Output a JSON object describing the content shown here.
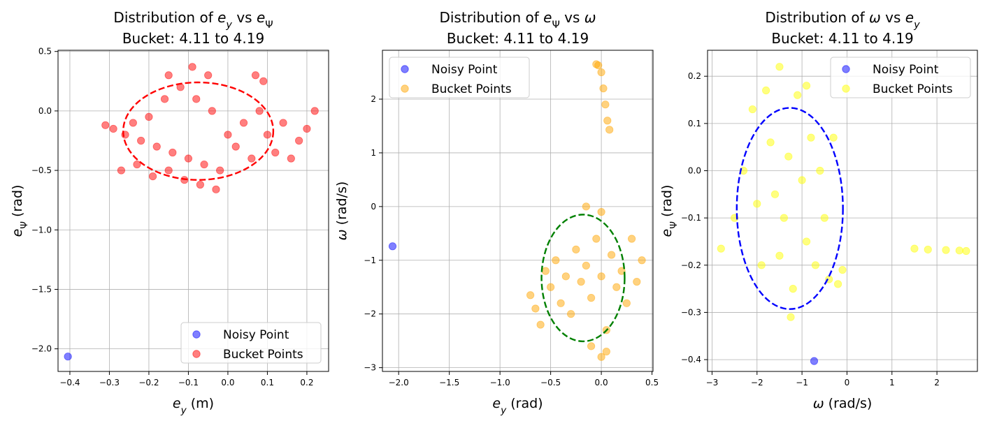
{
  "chart_data": [
    {
      "type": "scatter",
      "title_line1": "Distribution of e_y vs e_Ψ",
      "title_line2": "Bucket: 4.11 to 4.19",
      "xlabel": "e_y (m)",
      "ylabel": "e_Ψ (rad)",
      "xlim": [
        -0.43,
        0.255
      ],
      "ylim": [
        -2.19,
        0.51
      ],
      "xticks": [
        -0.4,
        -0.3,
        -0.2,
        -0.1,
        0.0,
        0.1,
        0.2
      ],
      "xtick_labels": [
        "−0.4",
        "−0.3",
        "−0.2",
        "−0.1",
        "0.0",
        "0.1",
        "0.2"
      ],
      "yticks": [
        -2.0,
        -1.5,
        -1.0,
        -0.5,
        0.0,
        0.5
      ],
      "ytick_labels": [
        "−2.0",
        "−1.5",
        "−1.0",
        "−0.5",
        "0.0",
        "0.5"
      ],
      "grid": true,
      "legend_position": "lower right",
      "series": [
        {
          "name": "Noisy Point",
          "color": "#0000ff",
          "points": [
            [
              -0.405,
              -2.065
            ]
          ]
        },
        {
          "name": "Bucket Points",
          "color": "#ff0000",
          "points": [
            [
              -0.31,
              -0.12
            ],
            [
              -0.29,
              -0.15
            ],
            [
              -0.26,
              -0.2
            ],
            [
              -0.24,
              -0.1
            ],
            [
              -0.22,
              -0.25
            ],
            [
              -0.2,
              -0.05
            ],
            [
              -0.18,
              -0.3
            ],
            [
              -0.16,
              0.1
            ],
            [
              -0.14,
              -0.35
            ],
            [
              -0.12,
              0.2
            ],
            [
              -0.1,
              -0.4
            ],
            [
              -0.08,
              0.1
            ],
            [
              -0.06,
              -0.45
            ],
            [
              -0.04,
              0.0
            ],
            [
              -0.02,
              -0.5
            ],
            [
              0.0,
              -0.2
            ],
            [
              0.02,
              -0.3
            ],
            [
              0.04,
              -0.1
            ],
            [
              0.06,
              -0.4
            ],
            [
              0.08,
              0.0
            ],
            [
              0.1,
              -0.2
            ],
            [
              0.12,
              -0.35
            ],
            [
              0.14,
              -0.1
            ],
            [
              0.16,
              -0.4
            ],
            [
              0.18,
              -0.25
            ],
            [
              0.2,
              -0.15
            ],
            [
              0.22,
              0.0
            ],
            [
              -0.27,
              -0.5
            ],
            [
              -0.23,
              -0.45
            ],
            [
              -0.19,
              -0.55
            ],
            [
              -0.15,
              -0.5
            ],
            [
              -0.11,
              -0.58
            ],
            [
              -0.07,
              -0.62
            ],
            [
              -0.03,
              -0.66
            ],
            [
              -0.09,
              0.37
            ],
            [
              -0.05,
              0.3
            ],
            [
              -0.15,
              0.3
            ],
            [
              0.07,
              0.3
            ],
            [
              0.09,
              0.25
            ]
          ]
        }
      ],
      "ellipse": {
        "color": "#ff0000",
        "cx": -0.075,
        "cy": -0.17,
        "rx": 0.19,
        "ry": 0.41
      }
    },
    {
      "type": "scatter",
      "title_line1": "Distribution of e_Ψ vs ω",
      "title_line2": "Bucket: 4.11 to 4.19",
      "xlabel": "e_y (rad)",
      "ylabel": "ω (rad/s)",
      "xlim": [
        -2.16,
        0.51
      ],
      "ylim": [
        -3.07,
        2.91
      ],
      "xticks": [
        -2.0,
        -1.5,
        -1.0,
        -0.5,
        0.0,
        0.5
      ],
      "xtick_labels": [
        "−2.0",
        "−1.5",
        "−1.0",
        "−0.5",
        "0.0",
        "0.5"
      ],
      "yticks": [
        -3,
        -2,
        -1,
        0,
        1,
        2
      ],
      "ytick_labels": [
        "−3",
        "−2",
        "−1",
        "0",
        "1",
        "2"
      ],
      "grid": true,
      "legend_position": "upper left",
      "series": [
        {
          "name": "Noisy Point",
          "color": "#0000ff",
          "points": [
            [
              -2.06,
              -0.74
            ]
          ]
        },
        {
          "name": "Bucket Points",
          "color": "#ffa500",
          "points": [
            [
              -0.7,
              -1.65
            ],
            [
              -0.65,
              -1.9
            ],
            [
              -0.6,
              -2.2
            ],
            [
              -0.55,
              -1.2
            ],
            [
              -0.5,
              -1.5
            ],
            [
              -0.45,
              -1.0
            ],
            [
              -0.4,
              -1.8
            ],
            [
              -0.35,
              -1.3
            ],
            [
              -0.3,
              -2.0
            ],
            [
              -0.25,
              -0.8
            ],
            [
              -0.2,
              -1.4
            ],
            [
              -0.15,
              -1.1
            ],
            [
              -0.1,
              -1.7
            ],
            [
              -0.05,
              -0.6
            ],
            [
              0.0,
              -1.3
            ],
            [
              0.05,
              -2.3
            ],
            [
              0.1,
              -0.9
            ],
            [
              0.15,
              -1.5
            ],
            [
              0.2,
              -1.2
            ],
            [
              0.25,
              -1.8
            ],
            [
              0.3,
              -0.6
            ],
            [
              0.35,
              -1.4
            ],
            [
              0.4,
              -1.0
            ],
            [
              -0.1,
              -2.6
            ],
            [
              0.0,
              -2.8
            ],
            [
              0.05,
              -2.7
            ],
            [
              -0.15,
              0.0
            ],
            [
              0.0,
              -0.1
            ],
            [
              -0.05,
              2.65
            ],
            [
              0.0,
              2.5
            ],
            [
              0.02,
              2.2
            ],
            [
              0.04,
              1.9
            ],
            [
              0.06,
              1.6
            ],
            [
              0.08,
              1.43
            ],
            [
              -0.03,
              2.63
            ]
          ]
        }
      ],
      "ellipse": {
        "color": "#008000",
        "cx": -0.18,
        "cy": -1.33,
        "rx": 0.41,
        "ry": 1.18
      }
    },
    {
      "type": "scatter",
      "title_line1": "Distribution of ω vs e_y",
      "title_line2": "Bucket: 4.11 to 4.19",
      "xlabel": "ω (rad/s)",
      "ylabel": "e_Ψ (rad)",
      "xlim": [
        -3.1,
        2.9
      ],
      "ylim": [
        -0.425,
        0.255
      ],
      "xticks": [
        -3,
        -2,
        -1,
        0,
        1,
        2
      ],
      "xtick_labels": [
        "−3",
        "−2",
        "−1",
        "0",
        "1",
        "2"
      ],
      "yticks": [
        -0.4,
        -0.3,
        -0.2,
        -0.1,
        0.0,
        0.1,
        0.2
      ],
      "ytick_labels": [
        "−0.4",
        "−0.3",
        "−0.2",
        "−0.1",
        "0.0",
        "0.1",
        "0.2"
      ],
      "grid": true,
      "legend_position": "upper right",
      "series": [
        {
          "name": "Noisy Point",
          "color": "#0000ff",
          "points": [
            [
              -0.73,
              -0.403
            ]
          ]
        },
        {
          "name": "Bucket Points",
          "color": "#ffff00",
          "points": [
            [
              -2.8,
              -0.165
            ],
            [
              -2.5,
              -0.1
            ],
            [
              -2.3,
              0.0
            ],
            [
              -2.1,
              0.13
            ],
            [
              -1.9,
              -0.2
            ],
            [
              -1.7,
              0.06
            ],
            [
              -1.6,
              -0.05
            ],
            [
              -1.5,
              0.22
            ],
            [
              -1.4,
              -0.1
            ],
            [
              -1.3,
              0.03
            ],
            [
              -1.2,
              -0.25
            ],
            [
              -1.1,
              0.16
            ],
            [
              -1.0,
              -0.02
            ],
            [
              -0.9,
              -0.15
            ],
            [
              -0.8,
              0.07
            ],
            [
              -0.7,
              -0.2
            ],
            [
              -0.6,
              0.0
            ],
            [
              -0.5,
              -0.1
            ],
            [
              -0.4,
              -0.23
            ],
            [
              -0.3,
              0.07
            ],
            [
              -0.2,
              -0.24
            ],
            [
              -0.1,
              -0.21
            ],
            [
              -1.8,
              0.17
            ],
            [
              -1.25,
              -0.31
            ],
            [
              -2.0,
              -0.07
            ],
            [
              -1.5,
              -0.18
            ],
            [
              -0.9,
              0.18
            ],
            [
              1.5,
              -0.165
            ],
            [
              1.8,
              -0.167
            ],
            [
              2.2,
              -0.168
            ],
            [
              2.5,
              -0.169
            ],
            [
              2.65,
              -0.17
            ]
          ]
        }
      ],
      "ellipse": {
        "color": "#0000ff",
        "cx": -1.27,
        "cy": -0.08,
        "rx": 1.18,
        "ry": 0.213
      }
    }
  ]
}
